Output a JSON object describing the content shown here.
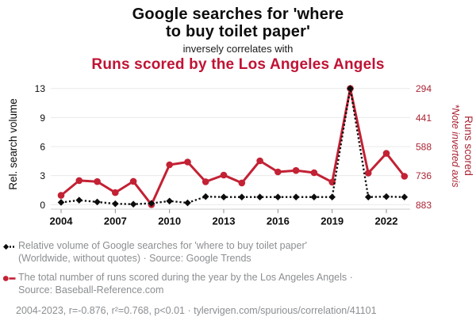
{
  "header": {
    "title": "Google searches for 'where\nto buy toilet paper'",
    "subtitle": "inversely correlates with",
    "title2": "Runs scored by the Los Angeles Angels"
  },
  "chart_data": {
    "type": "line",
    "x": [
      2004,
      2005,
      2006,
      2007,
      2008,
      2009,
      2010,
      2011,
      2012,
      2013,
      2014,
      2015,
      2016,
      2017,
      2018,
      2019,
      2020,
      2021,
      2022,
      2023
    ],
    "x_tick_labels": [
      2004,
      2007,
      2010,
      2013,
      2016,
      2019,
      2022
    ],
    "series": [
      {
        "name": "Relative volume of Google searches for 'where to buy toilet paper'",
        "axis": "left",
        "style": "dashed-diamond",
        "color": "#0d0d0d",
        "values": [
          0.25,
          0.5,
          0.3,
          0.1,
          0.05,
          0.15,
          0.4,
          0.2,
          0.9,
          0.85,
          0.85,
          0.85,
          0.85,
          0.85,
          0.85,
          0.85,
          13,
          0.85,
          0.9,
          0.85
        ]
      },
      {
        "name": "Runs scored by the Los Angeles Angels",
        "axis": "right",
        "style": "solid-circle",
        "color": "#c32134",
        "values": [
          836,
          761,
          766,
          822,
          765,
          883,
          681,
          667,
          767,
          733,
          773,
          661,
          717,
          710,
          721,
          769,
          294,
          723,
          623,
          739
        ]
      }
    ],
    "left_axis": {
      "label": "Rel. search volume",
      "ticks_top_to_bottom": [
        "13",
        "9",
        "6",
        "3",
        "0"
      ],
      "range": [
        0,
        13
      ]
    },
    "right_axis": {
      "label": "Runs scored",
      "note": "*Note inverted axis",
      "ticks_top_to_bottom": [
        "294",
        "441",
        "588",
        "736",
        "883"
      ],
      "range_top_to_bottom": [
        294,
        883
      ],
      "inverted": true
    },
    "grid": "horizontal-only",
    "legend_position": "bottom"
  },
  "legend": {
    "rows": [
      {
        "icon": "black-diamond-dashed-line-marker",
        "text": "Relative volume of Google searches for 'where to buy toilet paper'\n(Worldwide, without quotes) · Source: Google Trends"
      },
      {
        "icon": "red-circle-solid-line-marker",
        "text": "The total number of runs scored during the year by the Los Angeles Angels ·\nSource: Baseball-Reference.com"
      }
    ]
  },
  "footer": {
    "text": "2004-2023, r=-0.876, r²=0.768, p<0.01 · tylervigen.com/spurious/correlation/41101"
  },
  "colors": {
    "black_series": "#0d0d0d",
    "red_line": "#c32134",
    "red_axis_text": "#a92434",
    "red_heading": "#c01334",
    "legend_gray": "#8b8e91",
    "gridline": "#e9e9e9",
    "axis_line": "#cccccc",
    "tick_mark": "#8f8f8f"
  }
}
